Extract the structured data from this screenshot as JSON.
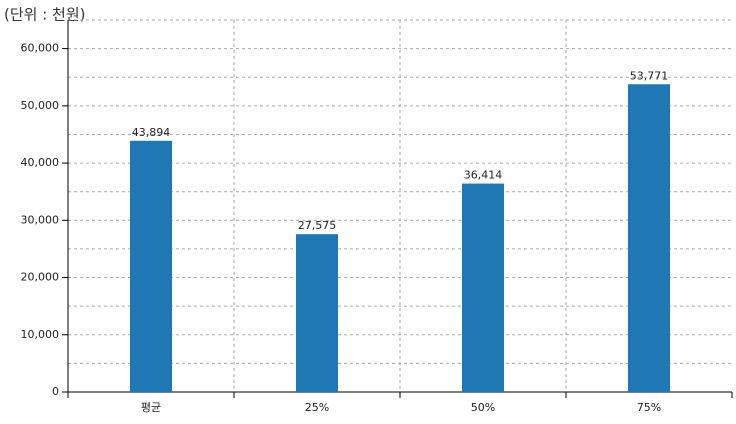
{
  "chart_data": {
    "type": "bar",
    "subtitle": "(단위 : 천원)",
    "categories": [
      "평균",
      "25%",
      "50%",
      "75%"
    ],
    "values": [
      43894,
      27575,
      36414,
      53771
    ],
    "value_labels": [
      "43,894",
      "27,575",
      "36,414",
      "53,771"
    ],
    "color": "#1f77b4",
    "ylim": [
      0,
      65000
    ],
    "yticks": [
      0,
      {
        "value": 10000,
        "label": "10,000"
      },
      {
        "value": 20000,
        "label": "20,000"
      },
      {
        "value": 30000,
        "label": "30,000"
      },
      {
        "value": 40000,
        "label": "40,000"
      },
      {
        "value": 50000,
        "label": "50,000"
      },
      {
        "value": 60000,
        "label": "60,000"
      }
    ],
    "ygrid": [
      5000,
      10000,
      15000,
      20000,
      25000,
      30000,
      35000,
      40000,
      45000,
      50000,
      55000,
      60000,
      65000
    ],
    "grid": true
  }
}
